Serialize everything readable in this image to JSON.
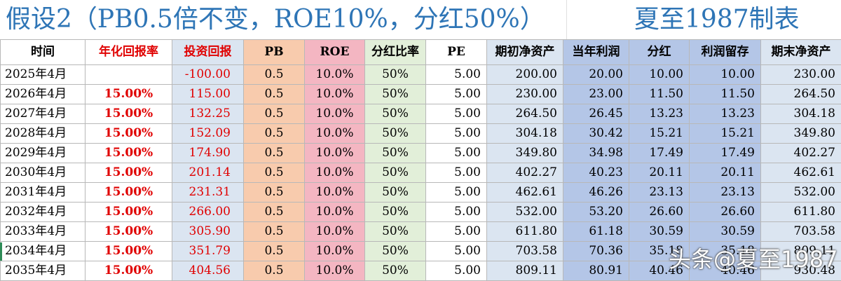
{
  "title": {
    "main": "假设2（PB0.5倍不变，ROE10%，分红50%）",
    "credit": "夏至1987制表"
  },
  "columns": [
    "时间",
    "年化回报率",
    "投资回报",
    "PB",
    "ROE",
    "分红比率",
    "PE",
    "期初净资产",
    "当年利润",
    "分红",
    "利润留存",
    "期末净资产"
  ],
  "rows": [
    [
      "2025年4月",
      "",
      "-100.00",
      "0.5",
      "10.0%",
      "50%",
      "5.00",
      "200.00",
      "20.00",
      "10.00",
      "10.00",
      "230.00"
    ],
    [
      "2026年4月",
      "15.00%",
      "115.00",
      "0.5",
      "10.0%",
      "50%",
      "5.00",
      "230.00",
      "23.00",
      "11.50",
      "11.50",
      "264.50"
    ],
    [
      "2027年4月",
      "15.00%",
      "132.25",
      "0.5",
      "10.0%",
      "50%",
      "5.00",
      "264.50",
      "26.45",
      "13.23",
      "13.23",
      "304.18"
    ],
    [
      "2028年4月",
      "15.00%",
      "152.09",
      "0.5",
      "10.0%",
      "50%",
      "5.00",
      "304.18",
      "30.42",
      "15.21",
      "15.21",
      "349.80"
    ],
    [
      "2029年4月",
      "15.00%",
      "174.90",
      "0.5",
      "10.0%",
      "50%",
      "5.00",
      "349.80",
      "34.98",
      "17.49",
      "17.49",
      "402.27"
    ],
    [
      "2030年4月",
      "15.00%",
      "201.14",
      "0.5",
      "10.0%",
      "50%",
      "5.00",
      "402.27",
      "40.23",
      "20.11",
      "20.11",
      "462.61"
    ],
    [
      "2031年4月",
      "15.00%",
      "231.31",
      "0.5",
      "10.0%",
      "50%",
      "5.00",
      "462.61",
      "46.26",
      "23.13",
      "23.13",
      "532.00"
    ],
    [
      "2032年4月",
      "15.00%",
      "266.00",
      "0.5",
      "10.0%",
      "50%",
      "5.00",
      "532.00",
      "53.20",
      "26.60",
      "26.60",
      "611.80"
    ],
    [
      "2033年4月",
      "15.00%",
      "305.90",
      "0.5",
      "10.0%",
      "50%",
      "5.00",
      "611.80",
      "61.18",
      "30.59",
      "30.59",
      "703.58"
    ],
    [
      "2034年4月",
      "15.00%",
      "351.79",
      "0.5",
      "10.0%",
      "50%",
      "5.00",
      "703.58",
      "70.36",
      "35.18",
      "35.18",
      "809.11"
    ],
    [
      "2035年4月",
      "15.00%",
      "404.56",
      "0.5",
      "10.0%",
      "50%",
      "5.00",
      "809.11",
      "80.91",
      "40.46",
      "40.46",
      "930.48"
    ]
  ],
  "watermark": "头条@夏至1987",
  "colors": {
    "title": "#2e75b6",
    "red_text": "#e00000",
    "invest_bg": "#dbe5f1",
    "pb_bg": "#f8cbad",
    "roe_bg": "#f4b6c2",
    "div_ratio_bg": "#e2efd9",
    "profit_bg": "#b4c6e7"
  }
}
